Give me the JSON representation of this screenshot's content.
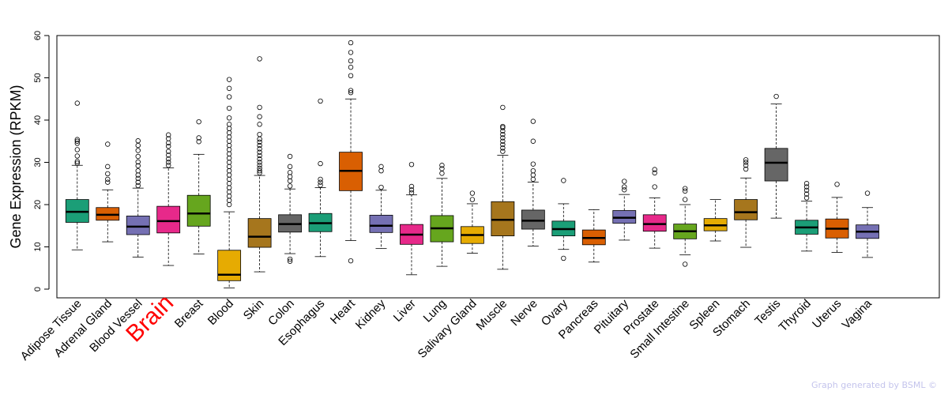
{
  "chart_data": {
    "type": "boxplot",
    "title": "",
    "xlabel": "",
    "ylabel": "Gene Expression (RPKM)",
    "ylim": [
      0,
      60
    ],
    "yticks": [
      0,
      10,
      20,
      30,
      40,
      50,
      60
    ],
    "highlight": "Brain",
    "highlight_color": "#ff0000",
    "series": [
      {
        "name": "Adipose Tissue",
        "color": "#1b9e77",
        "whisker_low": 9.3,
        "q1": 15.8,
        "median": 18.3,
        "q3": 21.2,
        "whisker_high": 29.3,
        "outliers": [
          29.8,
          30.2,
          31.5,
          33.0,
          34.5,
          35.0,
          35.4,
          44.0
        ]
      },
      {
        "name": "Adrenal Gland",
        "color": "#d95f02",
        "whisker_low": 11.2,
        "q1": 16.3,
        "median": 17.6,
        "q3": 19.3,
        "whisker_high": 23.5,
        "outliers": [
          25.3,
          26.0,
          27.3,
          29.0,
          34.3
        ]
      },
      {
        "name": "Blood Vessel",
        "color": "#7570b3",
        "whisker_low": 7.6,
        "q1": 12.9,
        "median": 14.8,
        "q3": 17.3,
        "whisker_high": 23.9,
        "outliers": [
          24.5,
          25.3,
          26.2,
          27.0,
          28.0,
          29.2,
          30.1,
          31.4,
          32.8,
          34.0,
          35.1
        ]
      },
      {
        "name": "Brain",
        "color": "#e7298a",
        "whisker_low": 5.6,
        "q1": 13.3,
        "median": 16.1,
        "q3": 19.6,
        "whisker_high": 28.7,
        "outliers": [
          29.3,
          30.0,
          30.8,
          31.7,
          32.6,
          33.8,
          34.6,
          35.6,
          36.5
        ]
      },
      {
        "name": "Breast",
        "color": "#66a61e",
        "whisker_low": 8.3,
        "q1": 14.9,
        "median": 17.9,
        "q3": 22.2,
        "whisker_high": 31.9,
        "outliers": [
          34.9,
          35.8,
          39.6
        ]
      },
      {
        "name": "Blood",
        "color": "#e6ab02",
        "whisker_low": 0.3,
        "q1": 2.0,
        "median": 3.4,
        "q3": 9.2,
        "whisker_high": 18.3,
        "outliers": [
          20.0,
          21.0,
          22.0,
          23.0,
          24.0,
          25.0,
          26.0,
          27.0,
          28.0,
          29.0,
          30.0,
          31.0,
          32.0,
          33.0,
          34.0,
          35.0,
          36.0,
          37.0,
          38.0,
          39.0,
          40.5,
          42.8,
          45.5,
          47.5,
          49.6
        ]
      },
      {
        "name": "Skin",
        "color": "#a6761d",
        "whisker_low": 4.1,
        "q1": 9.9,
        "median": 12.4,
        "q3": 16.7,
        "whisker_high": 26.9,
        "outliers": [
          27.5,
          28.0,
          28.6,
          29.3,
          30.0,
          30.8,
          31.6,
          32.4,
          33.2,
          34.0,
          34.8,
          35.5,
          36.6,
          39.0,
          40.8,
          43.0,
          54.5
        ]
      },
      {
        "name": "Colon",
        "color": "#666666",
        "whisker_low": 8.4,
        "q1": 13.5,
        "median": 15.4,
        "q3": 17.6,
        "whisker_high": 23.7,
        "outliers": [
          6.6,
          7.1,
          24.4,
          25.6,
          26.6,
          27.6,
          29.0,
          31.4
        ]
      },
      {
        "name": "Esophagus",
        "color": "#1b9e77",
        "whisker_low": 7.7,
        "q1": 13.6,
        "median": 15.6,
        "q3": 17.9,
        "whisker_high": 24.0,
        "outliers": [
          24.6,
          25.3,
          26.0,
          29.7,
          44.5
        ]
      },
      {
        "name": "Heart",
        "color": "#d95f02",
        "whisker_low": 11.5,
        "q1": 23.3,
        "median": 28.0,
        "q3": 32.4,
        "whisker_high": 45.0,
        "outliers": [
          6.7,
          46.5,
          47.0,
          50.5,
          52.5,
          54.0,
          56.0,
          58.3
        ]
      },
      {
        "name": "Kidney",
        "color": "#7570b3",
        "whisker_low": 9.6,
        "q1": 13.4,
        "median": 15.0,
        "q3": 17.5,
        "whisker_high": 23.4,
        "outliers": [
          24.1,
          28.0,
          29.0
        ]
      },
      {
        "name": "Liver",
        "color": "#e7298a",
        "whisker_low": 3.4,
        "q1": 10.6,
        "median": 12.9,
        "q3": 15.3,
        "whisker_high": 22.3,
        "outliers": [
          22.8,
          23.5,
          24.3,
          29.5
        ]
      },
      {
        "name": "Lung",
        "color": "#66a61e",
        "whisker_low": 5.4,
        "q1": 11.2,
        "median": 14.4,
        "q3": 17.4,
        "whisker_high": 26.2,
        "outliers": [
          27.4,
          28.5,
          29.3
        ]
      },
      {
        "name": "Salivary Gland",
        "color": "#e6ab02",
        "whisker_low": 8.5,
        "q1": 10.8,
        "median": 12.8,
        "q3": 14.8,
        "whisker_high": 20.2,
        "outliers": [
          21.2,
          22.7
        ]
      },
      {
        "name": "Muscle",
        "color": "#a6761d",
        "whisker_low": 4.7,
        "q1": 12.6,
        "median": 16.4,
        "q3": 20.7,
        "whisker_high": 31.7,
        "outliers": [
          32.6,
          33.4,
          34.2,
          35.0,
          35.8,
          36.6,
          37.4,
          38.2,
          38.5,
          43.0
        ]
      },
      {
        "name": "Nerve",
        "color": "#666666",
        "whisker_low": 10.2,
        "q1": 14.2,
        "median": 16.2,
        "q3": 18.7,
        "whisker_high": 25.3,
        "outliers": [
          26.0,
          27.0,
          28.0,
          29.6,
          35.0,
          39.7
        ]
      },
      {
        "name": "Ovary",
        "color": "#1b9e77",
        "whisker_low": 9.4,
        "q1": 12.6,
        "median": 14.2,
        "q3": 16.1,
        "whisker_high": 20.2,
        "outliers": [
          7.3,
          25.7
        ]
      },
      {
        "name": "Pancreas",
        "color": "#d95f02",
        "whisker_low": 6.4,
        "q1": 10.5,
        "median": 12.1,
        "q3": 14.0,
        "whisker_high": 18.8,
        "outliers": []
      },
      {
        "name": "Pituitary",
        "color": "#7570b3",
        "whisker_low": 11.6,
        "q1": 15.6,
        "median": 16.9,
        "q3": 18.6,
        "whisker_high": 22.4,
        "outliers": [
          23.5,
          24.2,
          25.5
        ]
      },
      {
        "name": "Prostate",
        "color": "#e7298a",
        "whisker_low": 9.7,
        "q1": 13.7,
        "median": 15.4,
        "q3": 17.6,
        "whisker_high": 21.6,
        "outliers": [
          24.2,
          27.5,
          28.3
        ]
      },
      {
        "name": "Small Intestine",
        "color": "#66a61e",
        "whisker_low": 8.1,
        "q1": 11.9,
        "median": 13.7,
        "q3": 15.4,
        "whisker_high": 20.0,
        "outliers": [
          5.9,
          21.2,
          23.2,
          23.8
        ]
      },
      {
        "name": "Spleen",
        "color": "#e6ab02",
        "whisker_low": 11.4,
        "q1": 13.8,
        "median": 15.1,
        "q3": 16.7,
        "whisker_high": 21.2,
        "outliers": []
      },
      {
        "name": "Stomach",
        "color": "#a6761d",
        "whisker_low": 9.9,
        "q1": 16.4,
        "median": 18.2,
        "q3": 21.2,
        "whisker_high": 26.3,
        "outliers": [
          28.4,
          29.3,
          30.0,
          30.6
        ]
      },
      {
        "name": "Testis",
        "color": "#666666",
        "whisker_low": 16.8,
        "q1": 25.6,
        "median": 29.9,
        "q3": 33.3,
        "whisker_high": 43.8,
        "outliers": [
          45.6
        ]
      },
      {
        "name": "Thyroid",
        "color": "#1b9e77",
        "whisker_low": 9.0,
        "q1": 13.0,
        "median": 14.6,
        "q3": 16.3,
        "whisker_high": 20.8,
        "outliers": [
          21.6,
          22.5,
          23.4,
          24.2,
          25.0
        ]
      },
      {
        "name": "Uterus",
        "color": "#d95f02",
        "whisker_low": 8.7,
        "q1": 12.1,
        "median": 14.3,
        "q3": 16.6,
        "whisker_high": 21.7,
        "outliers": [
          24.8
        ]
      },
      {
        "name": "Vagina",
        "color": "#7570b3",
        "whisker_low": 7.5,
        "q1": 12.0,
        "median": 13.6,
        "q3": 15.2,
        "whisker_high": 19.3,
        "outliers": [
          22.7
        ]
      }
    ]
  },
  "footer": {
    "credit": "Graph generated by BSML ©"
  }
}
